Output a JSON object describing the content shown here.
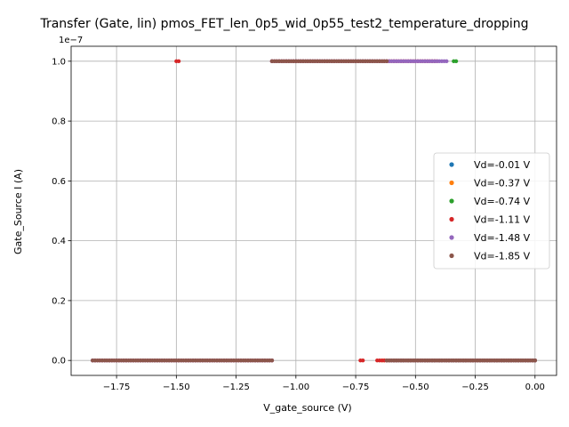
{
  "chart_data": {
    "type": "scatter",
    "title": "Transfer (Gate, lin) pmos_FET_len_0p5_wid_0p55_test2_temperature_dropping",
    "xlabel": "V_gate_source (V)",
    "ylabel": "Gate_Source I (A)",
    "y_offset_label": "1e−7",
    "xlim": [
      -1.94,
      0.09
    ],
    "ylim": [
      -5e-09,
      1.05e-07
    ],
    "xticks": [
      -1.75,
      -1.5,
      -1.25,
      -1.0,
      -0.75,
      -0.5,
      -0.25,
      0.0
    ],
    "xtick_labels": [
      "−1.75",
      "−1.50",
      "−1.25",
      "−1.00",
      "−0.75",
      "−0.50",
      "−0.25",
      "0.00"
    ],
    "yticks": [
      0,
      2e-08,
      4e-08,
      6e-08,
      8e-08,
      1e-07
    ],
    "ytick_labels": [
      "0.0",
      "0.2",
      "0.4",
      "0.6",
      "0.8",
      "1.0"
    ],
    "grid": true,
    "legend_position": "center-right",
    "series": [
      {
        "name": "Vd=-0.01 V",
        "color": "#1f77b4",
        "segments": [
          {
            "x0": -0.6,
            "x1": 0.0,
            "y": 0.0
          }
        ]
      },
      {
        "name": "Vd=-0.37 V",
        "color": "#ff7f0e",
        "segments": [
          {
            "x0": -0.64,
            "x1": 0.0,
            "y": 0.0
          }
        ]
      },
      {
        "name": "Vd=-0.74 V",
        "color": "#2ca02c",
        "segments": [
          {
            "x0": -0.62,
            "x1": 0.0,
            "y": 0.0
          },
          {
            "x0": -0.34,
            "x1": -0.33,
            "y": 1e-07
          }
        ]
      },
      {
        "name": "Vd=-1.11 V",
        "color": "#d62728",
        "segments": [
          {
            "x0": -1.85,
            "x1": -1.1,
            "y": 0.0
          },
          {
            "x0": -0.73,
            "x1": -0.72,
            "y": 0.0
          },
          {
            "x0": -0.66,
            "x1": 0.0,
            "y": 0.0
          },
          {
            "x0": -1.5,
            "x1": -1.49,
            "y": 1e-07
          },
          {
            "x0": -1.1,
            "x1": -0.41,
            "y": 1e-07
          }
        ]
      },
      {
        "name": "Vd=-1.48 V",
        "color": "#9467bd",
        "segments": [
          {
            "x0": -1.85,
            "x1": -1.1,
            "y": 0.0
          },
          {
            "x0": -0.62,
            "x1": 0.0,
            "y": 0.0
          },
          {
            "x0": -1.1,
            "x1": -0.37,
            "y": 1e-07
          }
        ]
      },
      {
        "name": "Vd=-1.85 V",
        "color": "#8c564b",
        "segments": [
          {
            "x0": -1.85,
            "x1": -1.1,
            "y": 0.0
          },
          {
            "x0": -0.62,
            "x1": 0.0,
            "y": 0.0
          },
          {
            "x0": -1.1,
            "x1": -0.62,
            "y": 1e-07
          }
        ]
      }
    ]
  }
}
